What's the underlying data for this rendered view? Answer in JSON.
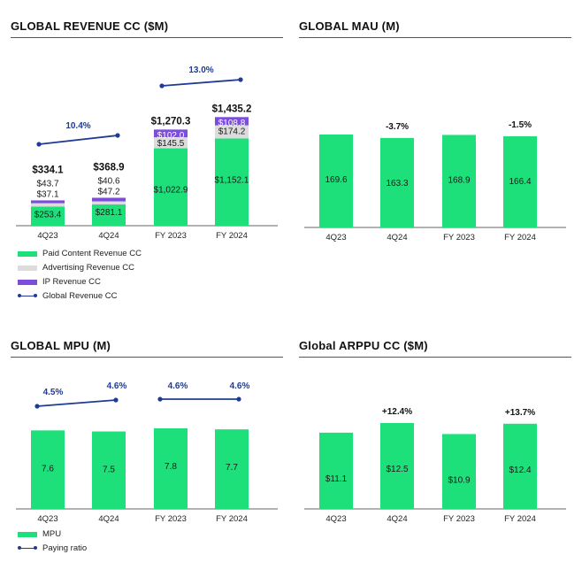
{
  "colors": {
    "paid": "#1ee07a",
    "advertising": "#dcdcdc",
    "ip": "#7c4ddb",
    "line": "#1f3b94",
    "axis": "#666666"
  },
  "chart_data": [
    {
      "id": "revenue",
      "type": "bar",
      "title": "GLOBAL REVENUE CC ($M)",
      "categories": [
        "4Q23",
        "4Q24",
        "FY 2023",
        "FY 2024"
      ],
      "series": [
        {
          "name": "Paid Content Revenue CC",
          "values": [
            253.4,
            281.1,
            1022.9,
            1152.1
          ],
          "labels": [
            "$253.4",
            "$281.1",
            "$1,022.9",
            "$1,152.1"
          ]
        },
        {
          "name": "Advertising Revenue CC",
          "values": [
            43.7,
            40.6,
            145.5,
            174.2
          ],
          "labels": [
            "$43.7",
            "$40.6",
            "$145.5",
            "$174.2"
          ]
        },
        {
          "name": "IP Revenue CC",
          "values": [
            37.1,
            47.2,
            102.0,
            108.8
          ],
          "labels": [
            "$37.1",
            "$47.2",
            "$102.0",
            "$108.8"
          ]
        }
      ],
      "totals": [
        "$334.1",
        "$368.9",
        "$1,270.3",
        "$1,435.2"
      ],
      "growth": [
        {
          "from": 0,
          "to": 1,
          "label": "10.4%"
        },
        {
          "from": 2,
          "to": 3,
          "label": "13.0%"
        }
      ],
      "legend": [
        "Paid Content Revenue CC",
        "Advertising Revenue CC",
        "IP Revenue CC",
        "Global Revenue CC"
      ]
    },
    {
      "id": "mau",
      "type": "bar",
      "title": "GLOBAL MAU (M)",
      "categories": [
        "4Q23",
        "4Q24",
        "FY 2023",
        "FY 2024"
      ],
      "values": [
        169.6,
        163.3,
        168.9,
        166.4
      ],
      "labels": [
        "169.6",
        "163.3",
        "168.9",
        "166.4"
      ],
      "changes": [
        {
          "index": 1,
          "label": "-3.7%"
        },
        {
          "index": 3,
          "label": "-1.5%"
        }
      ]
    },
    {
      "id": "mpu",
      "type": "bar",
      "title": "GLOBAL MPU (M)",
      "categories": [
        "4Q23",
        "4Q24",
        "FY 2023",
        "FY 2024"
      ],
      "values": [
        7.6,
        7.5,
        7.8,
        7.7
      ],
      "labels": [
        "7.6",
        "7.5",
        "7.8",
        "7.7"
      ],
      "paying_ratio": [
        "4.5%",
        "4.6%",
        "4.6%",
        "4.6%"
      ],
      "legend": [
        "MPU",
        "Paying ratio"
      ]
    },
    {
      "id": "arppu",
      "type": "bar",
      "title": "Global ARPPU CC ($M)",
      "categories": [
        "4Q23",
        "4Q24",
        "FY 2023",
        "FY 2024"
      ],
      "values": [
        11.1,
        12.5,
        10.9,
        12.4
      ],
      "labels": [
        "$11.1",
        "$12.5",
        "$10.9",
        "$12.4"
      ],
      "changes": [
        {
          "index": 1,
          "label": "+12.4%"
        },
        {
          "index": 3,
          "label": "+13.7%"
        }
      ]
    }
  ]
}
